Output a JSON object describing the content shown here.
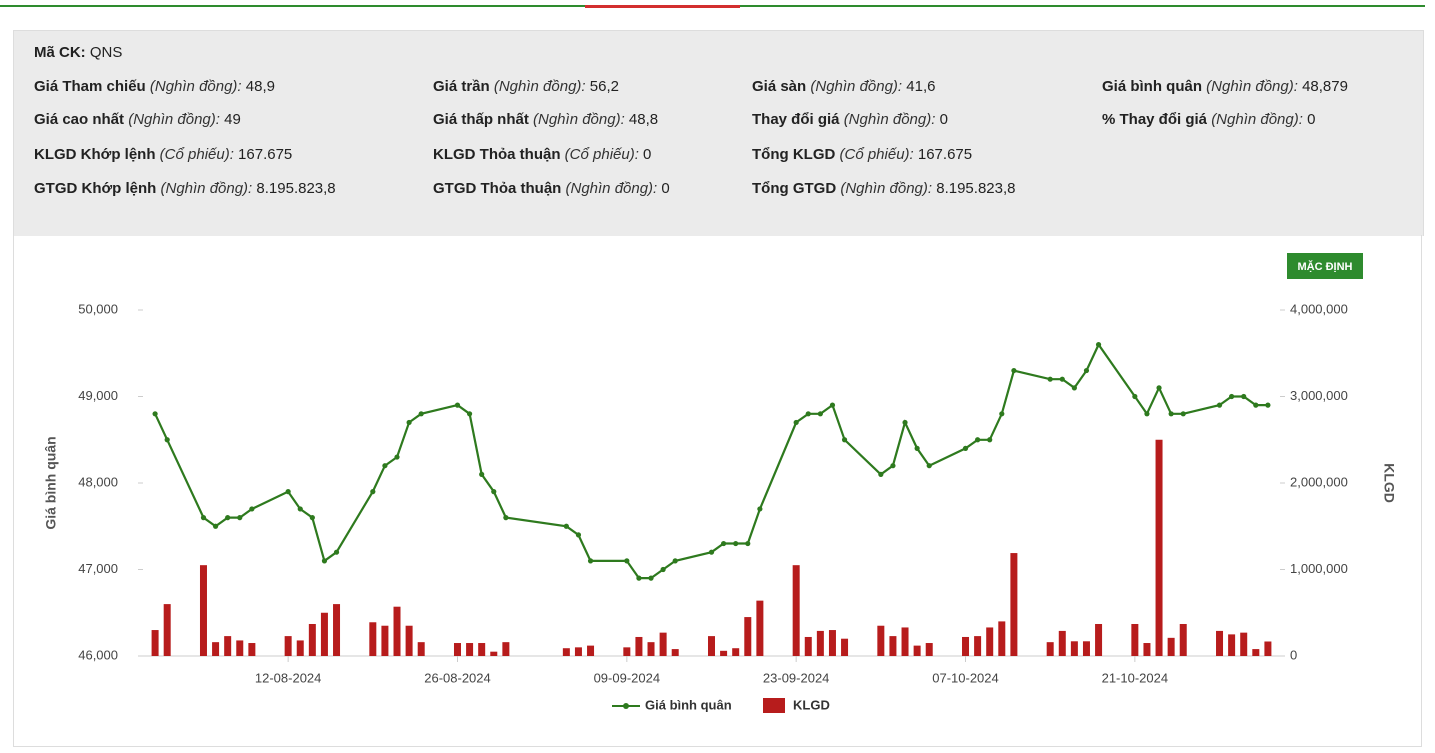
{
  "info": {
    "rows": [
      [
        {
          "label": "Mã CK:",
          "value": "QNS"
        }
      ],
      [
        {
          "label": "Giá Tham chiếu",
          "unit": "(Nghìn đồng):",
          "value": "48,9"
        },
        {
          "label": "Giá trần",
          "unit": "(Nghìn đồng):",
          "value": "56,2"
        },
        {
          "label": "Giá sàn",
          "unit": "(Nghìn đồng):",
          "value": "41,6"
        },
        {
          "label": "Giá bình quân",
          "unit": "(Nghìn đồng):",
          "value": "48,879"
        }
      ],
      [
        {
          "label": "Giá cao nhất",
          "unit": "(Nghìn đồng):",
          "value": "49"
        },
        {
          "label": "Giá thấp nhất",
          "unit": "(Nghìn đồng):",
          "value": "48,8"
        },
        {
          "label": "Thay đổi giá",
          "unit": "(Nghìn đồng):",
          "value": "0"
        },
        {
          "label": "% Thay đổi giá",
          "unit": "(Nghìn đồng):",
          "value": "0"
        }
      ],
      [
        {
          "label": "KLGD Khớp lệnh",
          "unit": "(Cổ phiếu):",
          "value": "167.675"
        },
        {
          "label": "KLGD Thỏa thuận",
          "unit": "(Cổ phiếu):",
          "value": "0"
        },
        {
          "label": "Tổng KLGD",
          "unit": "(Cổ phiếu):",
          "value": "167.675"
        }
      ],
      [
        {
          "label": "GTGD Khớp lệnh",
          "unit": "(Nghìn đồng):",
          "value": "8.195.823,8"
        },
        {
          "label": "GTGD Thỏa thuận",
          "unit": "(Nghìn đồng):",
          "value": "0"
        },
        {
          "label": "Tổng GTGD",
          "unit": "(Nghìn đồng):",
          "value": "8.195.823,8"
        }
      ]
    ]
  },
  "button": "MẶC ĐỊNH",
  "chart_data": {
    "type": "combo",
    "y_label": "Giá bình quân",
    "y2_label": "KLGD",
    "x": [
      "01-08-2024",
      "02-08-2024",
      "05-08-2024",
      "06-08-2024",
      "07-08-2024",
      "08-08-2024",
      "09-08-2024",
      "12-08-2024",
      "13-08-2024",
      "14-08-2024",
      "15-08-2024",
      "16-08-2024",
      "19-08-2024",
      "20-08-2024",
      "21-08-2024",
      "22-08-2024",
      "23-08-2024",
      "26-08-2024",
      "27-08-2024",
      "28-08-2024",
      "29-08-2024",
      "30-08-2024",
      "04-09-2024",
      "05-09-2024",
      "06-09-2024",
      "09-09-2024",
      "10-09-2024",
      "11-09-2024",
      "12-09-2024",
      "13-09-2024",
      "16-09-2024",
      "17-09-2024",
      "18-09-2024",
      "19-09-2024",
      "20-09-2024",
      "23-09-2024",
      "24-09-2024",
      "25-09-2024",
      "26-09-2024",
      "27-09-2024",
      "30-09-2024",
      "01-10-2024",
      "02-10-2024",
      "03-10-2024",
      "04-10-2024",
      "07-10-2024",
      "08-10-2024",
      "09-10-2024",
      "10-10-2024",
      "11-10-2024",
      "14-10-2024",
      "15-10-2024",
      "16-10-2024",
      "17-10-2024",
      "18-10-2024",
      "21-10-2024",
      "22-10-2024",
      "23-10-2024",
      "24-10-2024",
      "25-10-2024",
      "28-10-2024",
      "29-10-2024",
      "30-10-2024",
      "31-10-2024",
      "01-11-2024"
    ],
    "xlim": [
      "31-07-2024",
      "02-11-2024"
    ],
    "xticks": [
      "12-08-2024",
      "26-08-2024",
      "09-09-2024",
      "23-09-2024",
      "07-10-2024",
      "21-10-2024"
    ],
    "ylim": [
      46000,
      50000
    ],
    "yticks": [
      {
        "value": 46000,
        "label": "46,000"
      },
      {
        "value": 47000,
        "label": "47,000"
      },
      {
        "value": 48000,
        "label": "48,000"
      },
      {
        "value": 49000,
        "label": "49,000"
      },
      {
        "value": 50000,
        "label": "50,000"
      }
    ],
    "y2lim": [
      0,
      4000000
    ],
    "y2ticks": [
      0,
      {
        "value": 1000000,
        "label": "1,000,000"
      },
      {
        "value": 2000000,
        "label": "2,000,000"
      },
      {
        "value": 3000000,
        "label": "3,000,000"
      },
      {
        "value": 4000000,
        "label": "4,000,000"
      }
    ],
    "series": [
      {
        "name": "Giá bình quân",
        "type": "line",
        "color": "#2e7a1e",
        "values": [
          48800,
          48500,
          47600,
          47500,
          47600,
          47600,
          47700,
          47900,
          47700,
          47600,
          47100,
          47200,
          47900,
          48200,
          48300,
          48700,
          48800,
          48900,
          48800,
          48100,
          47900,
          47600,
          47500,
          47400,
          47100,
          47100,
          46900,
          46900,
          47000,
          47100,
          47200,
          47300,
          47300,
          47300,
          47700,
          48700,
          48800,
          48800,
          48900,
          48500,
          48100,
          48200,
          48700,
          48400,
          48200,
          48400,
          48500,
          48500,
          48800,
          49300,
          49200,
          49200,
          49100,
          49300,
          49600,
          49000,
          48800,
          49100,
          48800,
          48800,
          48900,
          49000,
          49000,
          48900,
          48900
        ]
      },
      {
        "name": "KLGD",
        "type": "bar",
        "axis": "y2",
        "color": "#b71c1c",
        "values": [
          300000,
          600000,
          1050000,
          160000,
          230000,
          180000,
          150000,
          230000,
          180000,
          370000,
          500000,
          600000,
          390000,
          350000,
          570000,
          350000,
          160000,
          150000,
          150000,
          150000,
          50000,
          160000,
          90000,
          100000,
          120000,
          100000,
          220000,
          160000,
          270000,
          80000,
          230000,
          60000,
          90000,
          450000,
          640000,
          1050000,
          220000,
          290000,
          300000,
          200000,
          350000,
          230000,
          330000,
          120000,
          150000,
          220000,
          230000,
          330000,
          400000,
          1190000,
          160000,
          290000,
          170000,
          170000,
          370000,
          370000,
          150000,
          2500000,
          210000,
          370000,
          290000,
          250000,
          270000,
          80000,
          167675
        ]
      }
    ]
  }
}
